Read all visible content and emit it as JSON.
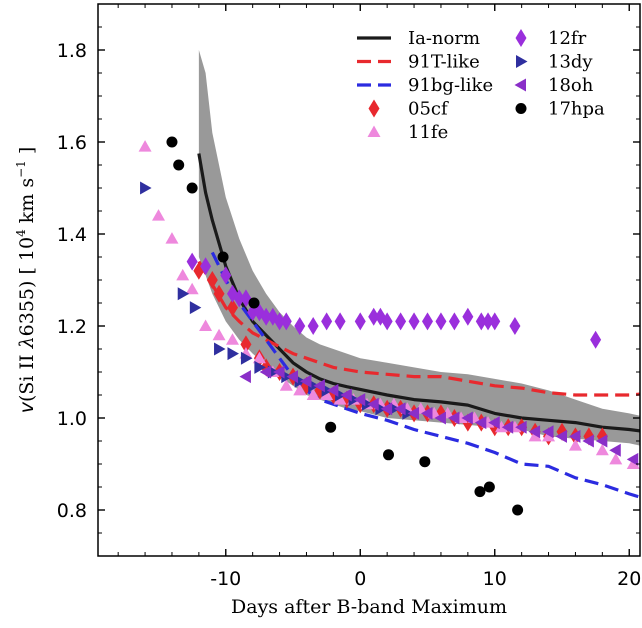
{
  "chart_data": {
    "type": "scatter",
    "xlabel": "Days after B-band Maximum",
    "ylabel_parts": {
      "v": "v",
      "open": "(Si II ",
      "lambda": "λ",
      "wave": "6355)  [ 10",
      "exp4": "4",
      "kms": " km s",
      "expm1": "−1",
      "close": " ]"
    },
    "xlim": [
      -19.5,
      20.8
    ],
    "ylim": [
      0.7,
      1.9
    ],
    "xticks": [
      -10,
      0,
      10,
      20
    ],
    "yticks": [
      0.8,
      1.0,
      1.2,
      1.4,
      1.6,
      1.8
    ],
    "xtick_labels": [
      "-10",
      "0",
      "10",
      "20"
    ],
    "ytick_labels": [
      "0.8",
      "1.0",
      "1.2",
      "1.4",
      "1.6",
      "1.8"
    ],
    "grid": false,
    "legend_position": "top-right",
    "band": {
      "color": "#999999",
      "x": [
        -12,
        -11.5,
        -11,
        -10,
        -9,
        -8,
        -7,
        -6,
        -5,
        -4,
        -3,
        -2,
        -1,
        0,
        2,
        4,
        6,
        8,
        10,
        12,
        14,
        16,
        18,
        20,
        20.8
      ],
      "upper": [
        1.8,
        1.75,
        1.62,
        1.48,
        1.39,
        1.32,
        1.27,
        1.23,
        1.2,
        1.175,
        1.16,
        1.15,
        1.14,
        1.13,
        1.12,
        1.11,
        1.1,
        1.095,
        1.085,
        1.075,
        1.06,
        1.04,
        1.02,
        1.01,
        1.005
      ],
      "lower": [
        1.35,
        1.31,
        1.27,
        1.21,
        1.17,
        1.14,
        1.115,
        1.09,
        1.07,
        1.05,
        1.04,
        1.03,
        1.02,
        1.015,
        1.0,
        0.995,
        0.99,
        0.985,
        0.98,
        0.975,
        0.96,
        0.955,
        0.95,
        0.945,
        0.94
      ]
    },
    "lines": [
      {
        "name": "Ia-norm",
        "color": "#1a1a1a",
        "dash": "",
        "x": [
          -12,
          -11.5,
          -11,
          -10.5,
          -10,
          -9,
          -8,
          -7,
          -6,
          -5,
          -4,
          -3,
          -2,
          -1,
          0,
          2,
          4,
          6,
          8,
          10,
          12,
          14,
          16,
          18,
          20,
          20.8
        ],
        "y": [
          1.575,
          1.49,
          1.43,
          1.38,
          1.33,
          1.26,
          1.21,
          1.18,
          1.15,
          1.12,
          1.1,
          1.085,
          1.075,
          1.068,
          1.062,
          1.05,
          1.04,
          1.035,
          1.028,
          1.01,
          1.0,
          0.995,
          0.99,
          0.98,
          0.975,
          0.972
        ]
      },
      {
        "name": "91T-like",
        "color": "#e8292e",
        "dash": "14,7",
        "x": [
          -12,
          -11,
          -10,
          -9,
          -8,
          -7,
          -6,
          -5,
          -4,
          -3,
          -2,
          -1,
          0,
          2,
          4,
          6,
          8,
          10,
          12,
          14,
          16,
          18,
          20,
          20.8
        ],
        "y": [
          1.34,
          1.29,
          1.24,
          1.21,
          1.185,
          1.17,
          1.155,
          1.14,
          1.13,
          1.12,
          1.11,
          1.105,
          1.1,
          1.095,
          1.09,
          1.09,
          1.08,
          1.07,
          1.065,
          1.055,
          1.05,
          1.05,
          1.05,
          1.052
        ]
      },
      {
        "name": "91bg-like",
        "color": "#2b2be0",
        "dash": "14,7",
        "x": [
          -11,
          -10,
          -9,
          -8,
          -7,
          -6,
          -5,
          -4,
          -3,
          -2,
          -1,
          0,
          2,
          4,
          6,
          8,
          10,
          12,
          14,
          16,
          18,
          20,
          20.8
        ],
        "y": [
          1.36,
          1.3,
          1.25,
          1.21,
          1.17,
          1.13,
          1.09,
          1.06,
          1.04,
          1.03,
          1.02,
          1.01,
          0.995,
          0.975,
          0.96,
          0.945,
          0.925,
          0.9,
          0.895,
          0.87,
          0.855,
          0.835,
          0.828
        ]
      }
    ],
    "series": [
      {
        "name": "05cf",
        "marker": "diamond",
        "color": "#e8292e",
        "x": [
          -12,
          -11,
          -10.5,
          -9.5,
          -8.5,
          -7.5,
          -7,
          -6,
          -5,
          -4,
          -3,
          -2,
          -1,
          0,
          1,
          2,
          3,
          4,
          5,
          6,
          7,
          8,
          9,
          10,
          11,
          12,
          13,
          14,
          15,
          16,
          17,
          18
        ],
        "y": [
          1.32,
          1.3,
          1.27,
          1.24,
          1.16,
          1.13,
          1.11,
          1.1,
          1.09,
          1.07,
          1.06,
          1.05,
          1.04,
          1.03,
          1.03,
          1.02,
          1.02,
          1.01,
          1.01,
          1.01,
          1.0,
          0.99,
          0.99,
          0.98,
          0.98,
          0.98,
          0.97,
          0.96,
          0.97,
          0.96,
          0.96,
          0.96
        ]
      },
      {
        "name": "11fe",
        "marker": "triangle-up",
        "color": "#ee88dd",
        "x": [
          -16,
          -15,
          -14,
          -13.2,
          -12.5,
          -11.5,
          -10.5,
          -9.5,
          -8.5,
          -7.5,
          -6.5,
          -5.5,
          -4.5,
          -3.5,
          -2.5,
          -1.5,
          -0.5,
          0.5,
          1.5,
          2.5,
          3.5,
          4.5,
          5.5,
          6.5,
          7.5,
          8.5,
          9.5,
          10.5,
          11.5,
          13,
          14,
          16,
          18,
          19,
          20.3
        ],
        "y": [
          1.59,
          1.44,
          1.39,
          1.31,
          1.28,
          1.2,
          1.18,
          1.17,
          1.14,
          1.13,
          1.1,
          1.07,
          1.06,
          1.05,
          1.05,
          1.04,
          1.04,
          1.03,
          1.03,
          1.03,
          1.02,
          1.02,
          1.01,
          1.01,
          1.0,
          1.0,
          0.99,
          0.98,
          0.98,
          0.96,
          0.96,
          0.94,
          0.93,
          0.91,
          0.9
        ]
      },
      {
        "name": "12fr",
        "marker": "diamond",
        "color": "#9a2fdc",
        "x": [
          -12.5,
          -11.5,
          -10,
          -9.5,
          -9,
          -8.5,
          -8,
          -7.5,
          -7,
          -6.5,
          -6,
          -5.5,
          -4.5,
          -3.5,
          -2.5,
          -1.5,
          0,
          1,
          1.5,
          2,
          3,
          4,
          5,
          6,
          7,
          8,
          9,
          9.5,
          10,
          11.5,
          17.5
        ],
        "y": [
          1.34,
          1.33,
          1.31,
          1.27,
          1.26,
          1.26,
          1.23,
          1.23,
          1.22,
          1.22,
          1.21,
          1.21,
          1.2,
          1.2,
          1.21,
          1.21,
          1.21,
          1.22,
          1.22,
          1.21,
          1.21,
          1.21,
          1.21,
          1.21,
          1.21,
          1.22,
          1.21,
          1.21,
          1.21,
          1.2,
          1.17
        ]
      },
      {
        "name": "13dy",
        "marker": "triangle-right",
        "color": "#2f2f9f",
        "x": [
          -16,
          -13.2,
          -12.3,
          -10.5,
          -9.5,
          -8.5,
          -7.5,
          -6.5,
          -5.5,
          -4.5,
          -3.5,
          -2.5,
          -1.5,
          -0.5,
          0.5,
          1.5,
          2.5,
          3.5
        ],
        "y": [
          1.5,
          1.27,
          1.24,
          1.15,
          1.14,
          1.13,
          1.11,
          1.1,
          1.09,
          1.08,
          1.07,
          1.06,
          1.05,
          1.04,
          1.03,
          1.02,
          1.02,
          1.01
        ]
      },
      {
        "name": "18oh",
        "marker": "triangle-left",
        "color": "#8a2fc8",
        "x": [
          -8.5,
          -7,
          -6,
          -5,
          -4,
          -3,
          -2,
          -1,
          0,
          1,
          2,
          3,
          4,
          5,
          6,
          7,
          8,
          9,
          10,
          11,
          12,
          13,
          14,
          15,
          16,
          17,
          18,
          19,
          20.3
        ],
        "y": [
          1.09,
          1.1,
          1.1,
          1.09,
          1.08,
          1.07,
          1.06,
          1.05,
          1.04,
          1.03,
          1.02,
          1.02,
          1.01,
          1.01,
          1.0,
          1.0,
          1.0,
          0.99,
          0.99,
          0.98,
          0.98,
          0.97,
          0.97,
          0.96,
          0.96,
          0.95,
          0.95,
          0.93,
          0.91
        ]
      },
      {
        "name": "17hpa",
        "marker": "circle",
        "color": "#000000",
        "x": [
          -14,
          -13.5,
          -12.5,
          -10.2,
          -7.9,
          -2.2,
          2.1,
          4.8,
          8.9,
          9.6,
          11.7
        ],
        "y": [
          1.6,
          1.55,
          1.5,
          1.35,
          1.25,
          0.98,
          0.92,
          0.905,
          0.84,
          0.85,
          0.8
        ]
      }
    ],
    "legend_col1": [
      {
        "label": "Ia-norm",
        "kind": "line",
        "color": "#1a1a1a",
        "dash": ""
      },
      {
        "label": "91T-like",
        "kind": "line",
        "color": "#e8292e",
        "dash": "14,7"
      },
      {
        "label": "91bg-like",
        "kind": "line",
        "color": "#2b2be0",
        "dash": "14,7"
      },
      {
        "label": "05cf",
        "kind": "marker",
        "marker": "diamond",
        "color": "#e8292e"
      },
      {
        "label": "11fe",
        "kind": "marker",
        "marker": "triangle-up",
        "color": "#ee88dd"
      }
    ],
    "legend_col2": [
      {
        "label": "12fr",
        "kind": "marker",
        "marker": "diamond",
        "color": "#9a2fdc"
      },
      {
        "label": "13dy",
        "kind": "marker",
        "marker": "triangle-right",
        "color": "#2f2f9f"
      },
      {
        "label": "18oh",
        "kind": "marker",
        "marker": "triangle-left",
        "color": "#8a2fc8"
      },
      {
        "label": "17hpa",
        "kind": "marker",
        "marker": "circle",
        "color": "#000000"
      }
    ]
  }
}
